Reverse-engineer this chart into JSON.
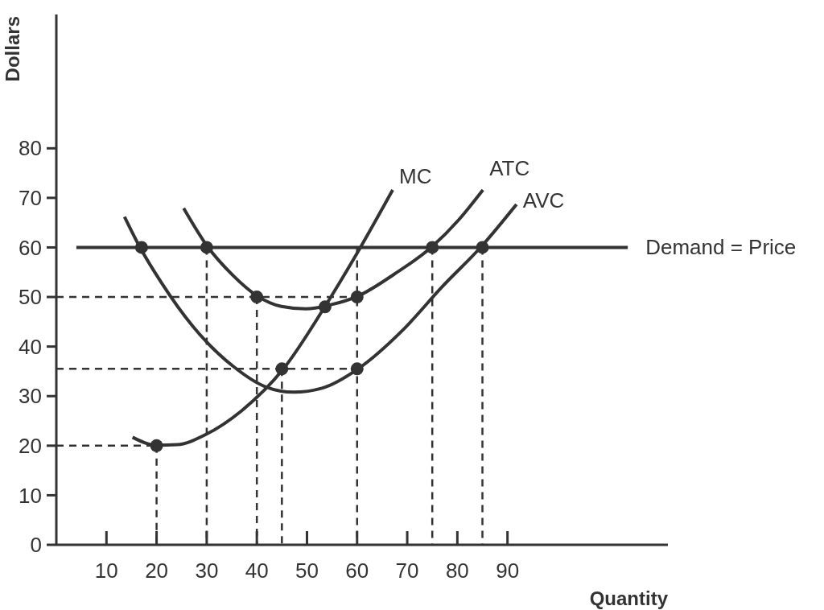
{
  "chart_data": {
    "type": "line",
    "xlabel": "Quantity",
    "ylabel": "Dollars",
    "xlim": [
      0,
      122
    ],
    "ylim": [
      0,
      107
    ],
    "xticks": [
      10,
      20,
      30,
      40,
      50,
      60,
      70,
      80,
      90
    ],
    "yticks": [
      0,
      10,
      20,
      30,
      40,
      50,
      60,
      70,
      80
    ],
    "series": [
      {
        "name": "Demand = Price",
        "color": "#333333",
        "x": [
          4,
          114
        ],
        "values": [
          60,
          60
        ]
      },
      {
        "name": "MC",
        "color": "#333333",
        "x": [
          15.2,
          20,
          24.1,
          29.7,
          36.9,
          45.3,
          53.6,
          59.4,
          67.1
        ],
        "values": [
          21.7,
          20.1,
          20.2,
          22.2,
          27,
          35.5,
          48.1,
          57.8,
          71.6
        ]
      },
      {
        "name": "ATC",
        "color": "#333333",
        "x": [
          25.4,
          30,
          35.3,
          40.1,
          44.9,
          49.8,
          54.6,
          60.2,
          67.4,
          75,
          80.3,
          85.1
        ],
        "values": [
          67.9,
          60.4,
          54.3,
          50.2,
          48.1,
          47.6,
          48.4,
          50.2,
          54.6,
          60.2,
          65.6,
          71.6
        ]
      },
      {
        "name": "AVC",
        "color": "#333333",
        "x": [
          13.6,
          16.7,
          20.9,
          27.3,
          35.3,
          41.7,
          47.4,
          53,
          60.2,
          69,
          77,
          84.8,
          91.8
        ],
        "values": [
          66.2,
          60,
          53,
          44,
          36,
          31.9,
          30.8,
          31.6,
          35.5,
          43.2,
          52.1,
          60.2,
          68.7
        ]
      },
      {
        "type": "line",
        "line_style": "dashed",
        "color": "#333333",
        "x": [
          0,
          60
        ],
        "values": [
          50,
          50
        ]
      },
      {
        "type": "line",
        "line_style": "dashed",
        "color": "#333333",
        "x": [
          0,
          60
        ],
        "values": [
          35.5,
          35.5
        ]
      },
      {
        "type": "line",
        "line_style": "dashed",
        "color": "#333333",
        "x": [
          0,
          20
        ],
        "values": [
          20,
          20
        ]
      },
      {
        "type": "line",
        "line_style": "dashed",
        "color": "#333333",
        "x": [
          20,
          20
        ],
        "values": [
          20,
          0
        ]
      },
      {
        "type": "line",
        "line_style": "dashed",
        "color": "#333333",
        "x": [
          30,
          30
        ],
        "values": [
          60,
          0
        ]
      },
      {
        "type": "line",
        "line_style": "dashed",
        "color": "#333333",
        "x": [
          40,
          40
        ],
        "values": [
          50,
          0
        ]
      },
      {
        "type": "line",
        "line_style": "dashed",
        "color": "#333333",
        "x": [
          45,
          45
        ],
        "values": [
          35.5,
          0
        ]
      },
      {
        "type": "line",
        "line_style": "dashed",
        "color": "#333333",
        "x": [
          60,
          60
        ],
        "values": [
          60,
          0
        ]
      },
      {
        "type": "line",
        "line_style": "dashed",
        "color": "#333333",
        "x": [
          75,
          75
        ],
        "values": [
          60,
          0
        ]
      },
      {
        "type": "line",
        "line_style": "dashed",
        "color": "#333333",
        "x": [
          85,
          85
        ],
        "values": [
          60,
          0
        ]
      },
      {
        "type": "scatter",
        "marker": "circle",
        "color": "#333333",
        "x": [
          17,
          30,
          40,
          60,
          75,
          85,
          45,
          53.6,
          60,
          20
        ],
        "values": [
          60,
          60,
          50,
          50,
          60,
          60,
          35.5,
          48,
          35.5,
          20
        ]
      }
    ]
  }
}
